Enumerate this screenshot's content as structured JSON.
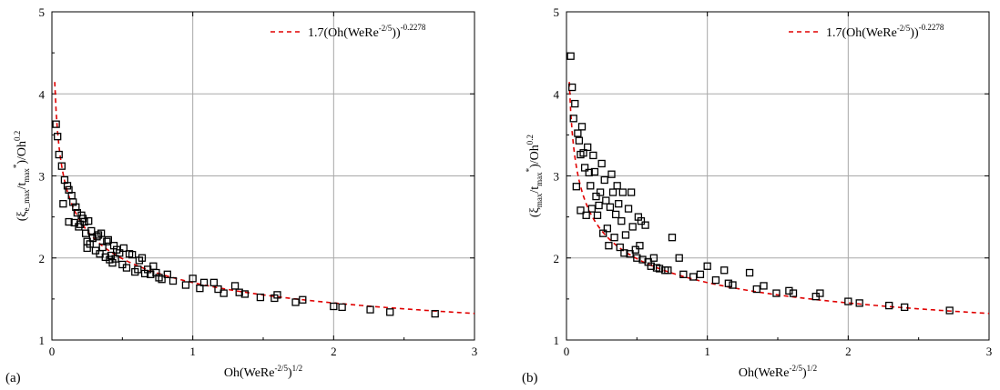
{
  "chart_data": [
    {
      "type": "scatter",
      "panel_label": "(a)",
      "xlabel": {
        "main": "Oh(WeRe",
        "sup": "-2/5",
        "close": ")",
        "sup2": "1/2"
      },
      "ylabel": {
        "open": "(ξ",
        "sub": "e_max",
        "mid": "/t",
        "sub2": "max",
        "sup": "*",
        "close": ")/Oh",
        "sup2": "0.2"
      },
      "xlim": [
        0,
        3
      ],
      "ylim": [
        1,
        5
      ],
      "xticks": [
        "0",
        "1",
        "2",
        "3"
      ],
      "yticks": [
        "1",
        "2",
        "3",
        "4",
        "5"
      ],
      "grid": true,
      "legend_position": "top-right",
      "fit": {
        "name": {
          "main": "1.7(Oh(WeRe",
          "sup": "-2/5",
          "close": "))",
          "sup2": "-0.2278"
        },
        "coef": 1.7,
        "exponent": -0.2278,
        "color": "#e00000",
        "style": "dashed"
      },
      "series": [
        {
          "name": "",
          "marker": "square",
          "points": [
            [
              0.03,
              3.63
            ],
            [
              0.04,
              3.48
            ],
            [
              0.05,
              3.26
            ],
            [
              0.07,
              3.12
            ],
            [
              0.08,
              2.66
            ],
            [
              0.09,
              2.95
            ],
            [
              0.11,
              2.88
            ],
            [
              0.12,
              2.83
            ],
            [
              0.12,
              2.44
            ],
            [
              0.14,
              2.76
            ],
            [
              0.15,
              2.68
            ],
            [
              0.16,
              2.43
            ],
            [
              0.17,
              2.62
            ],
            [
              0.18,
              2.55
            ],
            [
              0.19,
              2.38
            ],
            [
              0.2,
              2.41
            ],
            [
              0.21,
              2.52
            ],
            [
              0.22,
              2.48
            ],
            [
              0.23,
              2.44
            ],
            [
              0.24,
              2.3
            ],
            [
              0.25,
              2.2
            ],
            [
              0.25,
              2.12
            ],
            [
              0.26,
              2.45
            ],
            [
              0.27,
              2.17
            ],
            [
              0.28,
              2.33
            ],
            [
              0.29,
              2.24
            ],
            [
              0.31,
              2.09
            ],
            [
              0.32,
              2.26
            ],
            [
              0.33,
              2.28
            ],
            [
              0.34,
              2.05
            ],
            [
              0.35,
              2.3
            ],
            [
              0.36,
              2.13
            ],
            [
              0.38,
              2.01
            ],
            [
              0.39,
              2.2
            ],
            [
              0.4,
              2.22
            ],
            [
              0.41,
              1.98
            ],
            [
              0.42,
              2.03
            ],
            [
              0.43,
              1.94
            ],
            [
              0.44,
              2.15
            ],
            [
              0.45,
              1.99
            ],
            [
              0.46,
              2.1
            ],
            [
              0.48,
              2.06
            ],
            [
              0.5,
              1.92
            ],
            [
              0.51,
              2.12
            ],
            [
              0.53,
              1.88
            ],
            [
              0.55,
              2.05
            ],
            [
              0.57,
              2.04
            ],
            [
              0.59,
              1.83
            ],
            [
              0.61,
              1.86
            ],
            [
              0.62,
              1.97
            ],
            [
              0.64,
              2.0
            ],
            [
              0.66,
              1.81
            ],
            [
              0.68,
              1.86
            ],
            [
              0.7,
              1.8
            ],
            [
              0.72,
              1.9
            ],
            [
              0.74,
              1.82
            ],
            [
              0.76,
              1.76
            ],
            [
              0.78,
              1.74
            ],
            [
              0.82,
              1.8
            ],
            [
              0.86,
              1.72
            ],
            [
              0.95,
              1.67
            ],
            [
              1.0,
              1.75
            ],
            [
              1.05,
              1.63
            ],
            [
              1.08,
              1.7
            ],
            [
              1.15,
              1.7
            ],
            [
              1.18,
              1.62
            ],
            [
              1.22,
              1.57
            ],
            [
              1.3,
              1.66
            ],
            [
              1.33,
              1.58
            ],
            [
              1.37,
              1.56
            ],
            [
              1.48,
              1.52
            ],
            [
              1.58,
              1.51
            ],
            [
              1.6,
              1.55
            ],
            [
              1.73,
              1.46
            ],
            [
              1.78,
              1.49
            ],
            [
              2.0,
              1.41
            ],
            [
              2.06,
              1.4
            ],
            [
              2.26,
              1.37
            ],
            [
              2.4,
              1.34
            ],
            [
              2.72,
              1.32
            ]
          ]
        }
      ]
    },
    {
      "type": "scatter",
      "panel_label": "(b)",
      "xlabel": {
        "main": "Oh(WeRe",
        "sup": "-2/5",
        "close": ")",
        "sup2": "1/2"
      },
      "ylabel": {
        "open": "(ξ",
        "sub": "max",
        "mid": "/t",
        "sub2": "max",
        "sup": "*",
        "close": ")/Oh",
        "sup2": "0.2"
      },
      "xlim": [
        0,
        3
      ],
      "ylim": [
        1,
        5
      ],
      "xticks": [
        "0",
        "1",
        "2",
        "3"
      ],
      "yticks": [
        "1",
        "2",
        "3",
        "4",
        "5"
      ],
      "grid": true,
      "legend_position": "top-right",
      "fit": {
        "name": {
          "main": "1.7(Oh(WeRe",
          "sup": "-2/5",
          "close": "))",
          "sup2": "-0.2278"
        },
        "coef": 1.7,
        "exponent": -0.2278,
        "color": "#e00000",
        "style": "dashed"
      },
      "series": [
        {
          "name": "",
          "marker": "square",
          "points": [
            [
              0.03,
              4.46
            ],
            [
              0.04,
              4.08
            ],
            [
              0.05,
              3.7
            ],
            [
              0.06,
              3.88
            ],
            [
              0.07,
              2.87
            ],
            [
              0.08,
              3.52
            ],
            [
              0.09,
              3.43
            ],
            [
              0.1,
              3.26
            ],
            [
              0.1,
              2.58
            ],
            [
              0.11,
              3.6
            ],
            [
              0.12,
              3.28
            ],
            [
              0.13,
              3.1
            ],
            [
              0.14,
              2.52
            ],
            [
              0.15,
              3.35
            ],
            [
              0.16,
              3.04
            ],
            [
              0.17,
              2.88
            ],
            [
              0.18,
              2.6
            ],
            [
              0.19,
              3.25
            ],
            [
              0.2,
              3.05
            ],
            [
              0.21,
              2.75
            ],
            [
              0.22,
              2.52
            ],
            [
              0.23,
              2.64
            ],
            [
              0.24,
              2.8
            ],
            [
              0.25,
              3.15
            ],
            [
              0.26,
              2.3
            ],
            [
              0.27,
              2.95
            ],
            [
              0.28,
              2.7
            ],
            [
              0.29,
              2.36
            ],
            [
              0.3,
              2.15
            ],
            [
              0.31,
              2.62
            ],
            [
              0.32,
              3.02
            ],
            [
              0.33,
              2.8
            ],
            [
              0.34,
              2.25
            ],
            [
              0.35,
              2.53
            ],
            [
              0.36,
              2.88
            ],
            [
              0.37,
              2.66
            ],
            [
              0.38,
              2.13
            ],
            [
              0.39,
              2.45
            ],
            [
              0.4,
              2.8
            ],
            [
              0.41,
              2.06
            ],
            [
              0.42,
              2.28
            ],
            [
              0.44,
              2.6
            ],
            [
              0.45,
              2.05
            ],
            [
              0.46,
              2.8
            ],
            [
              0.47,
              2.38
            ],
            [
              0.49,
              2.1
            ],
            [
              0.5,
              2.0
            ],
            [
              0.51,
              2.5
            ],
            [
              0.52,
              2.15
            ],
            [
              0.53,
              2.45
            ],
            [
              0.54,
              1.98
            ],
            [
              0.56,
              2.4
            ],
            [
              0.58,
              1.95
            ],
            [
              0.6,
              1.9
            ],
            [
              0.62,
              2.0
            ],
            [
              0.64,
              1.88
            ],
            [
              0.66,
              1.87
            ],
            [
              0.7,
              1.85
            ],
            [
              0.72,
              1.85
            ],
            [
              0.75,
              2.25
            ],
            [
              0.8,
              2.0
            ],
            [
              0.83,
              1.8
            ],
            [
              0.9,
              1.77
            ],
            [
              0.95,
              1.8
            ],
            [
              1.0,
              1.9
            ],
            [
              1.06,
              1.73
            ],
            [
              1.12,
              1.85
            ],
            [
              1.15,
              1.69
            ],
            [
              1.18,
              1.67
            ],
            [
              1.3,
              1.82
            ],
            [
              1.35,
              1.62
            ],
            [
              1.4,
              1.66
            ],
            [
              1.49,
              1.57
            ],
            [
              1.58,
              1.6
            ],
            [
              1.61,
              1.57
            ],
            [
              1.77,
              1.53
            ],
            [
              1.8,
              1.57
            ],
            [
              2.0,
              1.47
            ],
            [
              2.08,
              1.45
            ],
            [
              2.29,
              1.42
            ],
            [
              2.4,
              1.4
            ],
            [
              2.72,
              1.36
            ]
          ]
        }
      ]
    }
  ]
}
